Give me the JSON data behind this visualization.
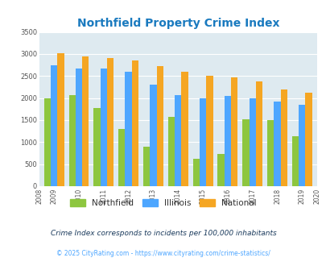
{
  "title": "Northfield Property Crime Index",
  "title_color": "#1a7abf",
  "years": [
    2009,
    2010,
    2011,
    2012,
    2013,
    2014,
    2015,
    2016,
    2017,
    2018,
    2019
  ],
  "northfield": [
    2000,
    2075,
    1775,
    1300,
    900,
    1575,
    625,
    725,
    1525,
    1500,
    1125
  ],
  "illinois": [
    2750,
    2675,
    2675,
    2600,
    2300,
    2075,
    2000,
    2050,
    2000,
    1925,
    1850
  ],
  "national": [
    3025,
    2950,
    2900,
    2850,
    2725,
    2600,
    2500,
    2475,
    2375,
    2200,
    2125
  ],
  "northfield_color": "#8dc63f",
  "illinois_color": "#4da6ff",
  "national_color": "#f5a623",
  "plot_bg": "#deeaf0",
  "ylim": [
    0,
    3500
  ],
  "yticks": [
    0,
    500,
    1000,
    1500,
    2000,
    2500,
    3000,
    3500
  ],
  "footnote1": "Crime Index corresponds to incidents per 100,000 inhabitants",
  "footnote2": "© 2025 CityRating.com - https://www.cityrating.com/crime-statistics/",
  "footnote1_color": "#1a3a5c",
  "footnote2_color": "#4da6ff"
}
